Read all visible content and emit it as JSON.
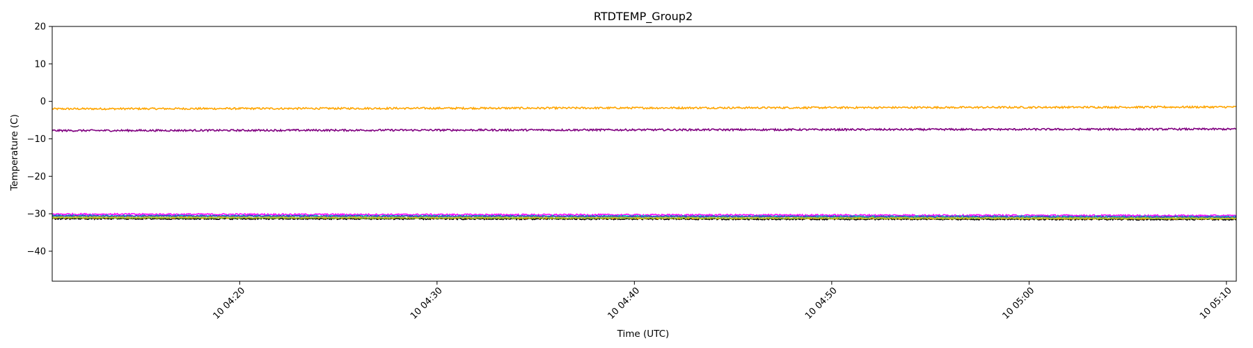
{
  "chart_data": {
    "type": "line",
    "title": "RTDTEMP_Group2",
    "xlabel": "Time (UTC)",
    "ylabel": "Temperature (C)",
    "xlim": [
      "04:10:30",
      "05:10:30"
    ],
    "ylim": [
      -48,
      20
    ],
    "yticks": [
      20,
      10,
      0,
      -10,
      -20,
      -30,
      -40
    ],
    "xticks": [
      {
        "t": "04:20:00",
        "label": "10 04:20"
      },
      {
        "t": "04:30:00",
        "label": "10 04:30"
      },
      {
        "t": "04:40:00",
        "label": "10 04:40"
      },
      {
        "t": "04:50:00",
        "label": "10 04:50"
      },
      {
        "t": "05:00:00",
        "label": "10 05:00"
      },
      {
        "t": "05:10:00",
        "label": "10 05:10"
      }
    ],
    "grid": false,
    "series": [
      {
        "color": "#ffa500",
        "x": [
          "04:10:30",
          "05:10:30"
        ],
        "y": [
          -2.0,
          -1.5
        ],
        "noise": 0.25
      },
      {
        "color": "#800080",
        "x": [
          "04:10:30",
          "05:10:30"
        ],
        "y": [
          -7.8,
          -7.4
        ],
        "noise": 0.25
      },
      {
        "color": "#ff00ff",
        "x": [
          "04:10:30",
          "05:10:30"
        ],
        "y": [
          -30.1,
          -30.5
        ],
        "noise": 0.2
      },
      {
        "color": "#00bfbf",
        "x": [
          "04:10:30",
          "05:10:30"
        ],
        "y": [
          -30.5,
          -30.8
        ],
        "noise": 0.2
      },
      {
        "color": "#3f3fbf",
        "x": [
          "04:10:30",
          "05:10:30"
        ],
        "y": [
          -30.6,
          -30.9
        ],
        "noise": 0.2
      },
      {
        "color": "#000000",
        "x": [
          "04:10:30",
          "05:10:30"
        ],
        "y": [
          -31.3,
          -31.5
        ],
        "noise": 0.2
      },
      {
        "color": "#ffa500",
        "x": [
          "04:10:30",
          "05:10:30"
        ],
        "y": [
          -31.0,
          -31.3
        ],
        "noise": 0.2
      },
      {
        "color": "#9acd32",
        "x": [
          "04:10:30",
          "05:10:30"
        ],
        "y": [
          -31.0,
          -31.2
        ],
        "noise": 0.2
      }
    ]
  }
}
